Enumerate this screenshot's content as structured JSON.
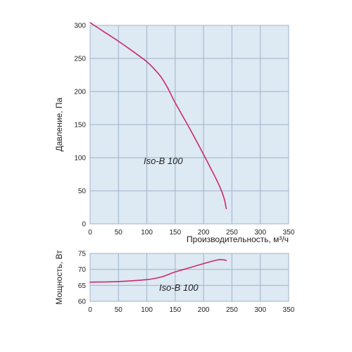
{
  "colors": {
    "plot_bg": "#dde9f3",
    "grid": "#9fb3c8",
    "curve": "#cc2a6a",
    "text": "#222222"
  },
  "chart_data": [
    {
      "type": "line",
      "title": "",
      "xlabel": "Производительность, м³/ч",
      "ylabel": "Давление, Па",
      "xlim": [
        0,
        350
      ],
      "ylim": [
        0,
        300
      ],
      "x_ticks": [
        0,
        50,
        100,
        150,
        200,
        250,
        300,
        350
      ],
      "y_ticks": [
        0,
        50,
        100,
        150,
        200,
        250,
        300
      ],
      "grid": true,
      "annotation": "Iso-B 100",
      "series": [
        {
          "x": [
            0,
            25,
            50,
            75,
            100,
            112,
            125,
            137,
            150,
            175,
            200,
            212,
            225,
            233,
            237,
            240
          ],
          "y": [
            304,
            290,
            276,
            261,
            245,
            235,
            222,
            205,
            183,
            145,
            105,
            85,
            63,
            47,
            36,
            23
          ]
        }
      ]
    },
    {
      "type": "line",
      "title": "",
      "xlabel": "",
      "ylabel": "Мощность, Вт",
      "xlim": [
        0,
        350
      ],
      "ylim": [
        60,
        75
      ],
      "x_ticks": [
        0,
        50,
        100,
        150,
        200,
        250,
        300,
        350
      ],
      "y_ticks": [
        60,
        65,
        70,
        75
      ],
      "grid": true,
      "annotation": "Iso-B 100",
      "series": [
        {
          "x": [
            0,
            50,
            100,
            125,
            150,
            175,
            200,
            225,
            235,
            240
          ],
          "y": [
            66,
            66.2,
            66.8,
            67.6,
            69.2,
            70.5,
            71.8,
            73,
            73,
            72.8
          ]
        }
      ]
    }
  ]
}
